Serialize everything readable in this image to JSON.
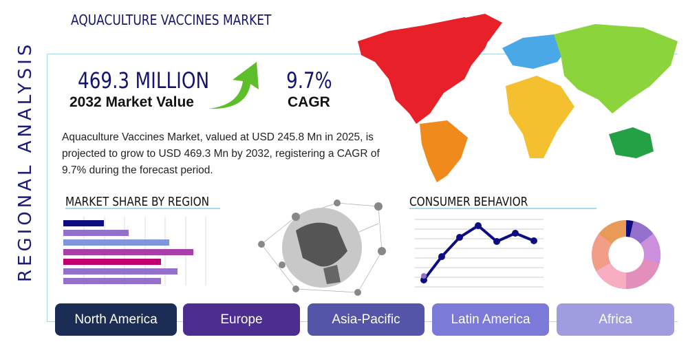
{
  "title": "AQUACULTURE VACCINES MARKET",
  "side_label": "REGIONAL ANALYSIS",
  "market_value": {
    "value": "469.3 MILLION",
    "label": "2032 Market Value"
  },
  "cagr": {
    "value": "9.7%",
    "label": "CAGR"
  },
  "description": "Aquaculture Vaccines Market, valued at USD 245.8 Mn in 2025, is projected to grow to USD 469.3 Mn by 2032, registering a CAGR of 9.7% during the forecast period.",
  "sections": {
    "market_share": "MARKET SHARE BY REGION",
    "consumer_behavior": "CONSUMER BEHAVIOR"
  },
  "regions": [
    {
      "label": "North America",
      "color": "#1b2d55"
    },
    {
      "label": "Europe",
      "color": "#4d2d8f"
    },
    {
      "label": "Asia-Pacific",
      "color": "#5454a8"
    },
    {
      "label": "Latin America",
      "color": "#7b7ad8"
    },
    {
      "label": "Africa",
      "color": "#9f9de0"
    }
  ],
  "colors": {
    "accent": "#14146e",
    "frame": "#a8d8ea",
    "arrow": "#5cbf2a"
  }
}
